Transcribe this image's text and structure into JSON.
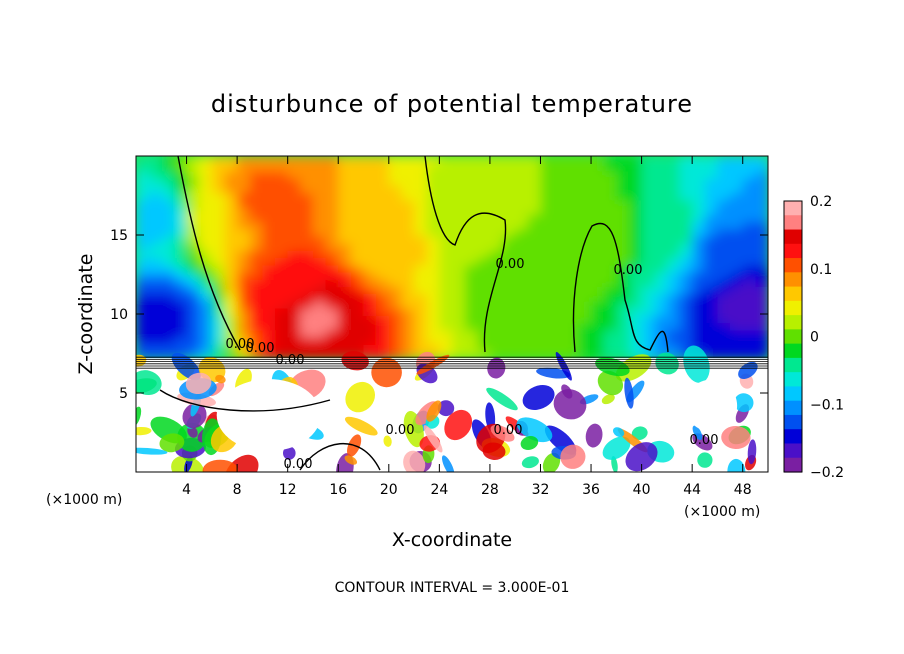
{
  "chart_data": {
    "type": "heatmap",
    "title": "disturbunce of potential temperature",
    "xlabel": "X-coordinate",
    "ylabel": "Z-coordinate",
    "x_unit_label": "(×1000 m)",
    "y_unit_label": "(×1000 m)",
    "xlim": [
      0,
      50
    ],
    "ylim": [
      0,
      20
    ],
    "x_ticks": [
      4,
      8,
      12,
      16,
      20,
      24,
      28,
      32,
      36,
      40,
      44,
      48
    ],
    "x_tick_labels": [
      "4",
      "8",
      "12",
      "16",
      "20",
      "24",
      "28",
      "32",
      "36",
      "40",
      "44",
      "48"
    ],
    "y_ticks": [
      5,
      10,
      15
    ],
    "y_tick_labels": [
      "5",
      "10",
      "15"
    ],
    "colorbar": {
      "range": [
        -0.2,
        0.2
      ],
      "tick_values": [
        0.2,
        0.1,
        0,
        -0.1,
        -0.2
      ],
      "tick_labels": [
        "0.2",
        "0.1",
        "0",
        "−0.1",
        "−0.2"
      ],
      "colors": [
        "#7a1fa2",
        "#4a10c8",
        "#0000d8",
        "#0050f0",
        "#0090ff",
        "#00c8ff",
        "#00e8d8",
        "#00e890",
        "#00d820",
        "#60e000",
        "#b8f000",
        "#f0f000",
        "#ffc800",
        "#ff9000",
        "#ff5000",
        "#ff1010",
        "#e00000",
        "#ff8080",
        "#ffb0b0"
      ]
    },
    "contour_labels": [
      "0.00",
      "0.00",
      "0.00",
      "0.00",
      "0.00",
      "0.00",
      "0.00",
      "0.00",
      "0.00"
    ],
    "upper_field_samples": [
      {
        "x": 2,
        "z": 16,
        "value": -0.08
      },
      {
        "x": 2,
        "z": 10,
        "value": -0.14
      },
      {
        "x": 6,
        "z": 16,
        "value": 0.05
      },
      {
        "x": 10,
        "z": 17,
        "value": 0.1
      },
      {
        "x": 12,
        "z": 12,
        "value": 0.12
      },
      {
        "x": 14,
        "z": 10,
        "value": 0.16
      },
      {
        "x": 20,
        "z": 15,
        "value": 0.06
      },
      {
        "x": 26,
        "z": 16,
        "value": 0.02
      },
      {
        "x": 30,
        "z": 12,
        "value": 0.0
      },
      {
        "x": 36,
        "z": 15,
        "value": 0.01
      },
      {
        "x": 42,
        "z": 15,
        "value": -0.04
      },
      {
        "x": 46,
        "z": 14,
        "value": -0.12
      },
      {
        "x": 48,
        "z": 11,
        "value": -0.16
      }
    ],
    "lower_layer_top_z": 7.2
  },
  "footer": {
    "contour_interval_text": "CONTOUR INTERVAL = 3.000E-01"
  }
}
